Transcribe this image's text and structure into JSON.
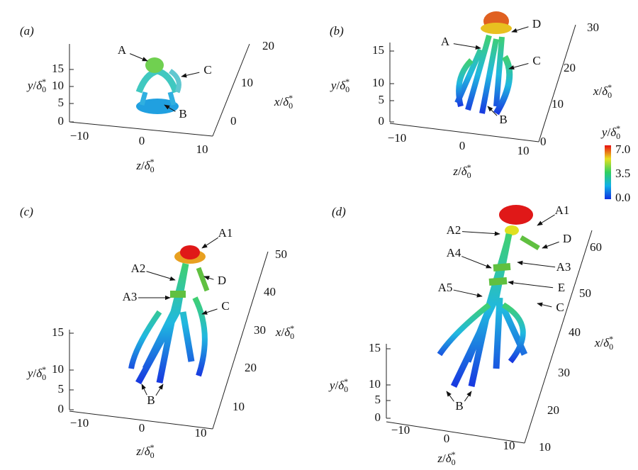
{
  "panels": [
    {
      "label": "(a)",
      "y_ticks": [
        "0",
        "5",
        "10",
        "15"
      ],
      "z_ticks": [
        "−10",
        "0",
        "10"
      ],
      "x_ticks": [
        "0",
        "10",
        "20"
      ],
      "y_label": {
        "var": "y",
        "sep": "/",
        "sym": "δ",
        "sub": "0",
        "sup": "*"
      },
      "z_label": {
        "var": "z",
        "sep": "/",
        "sym": "δ",
        "sub": "0",
        "sup": "*"
      },
      "x_label": {
        "var": "x",
        "sep": "/",
        "sym": "δ",
        "sub": "0",
        "sup": "*"
      },
      "annotations": [
        "A",
        "C",
        "B"
      ]
    },
    {
      "label": "(b)",
      "y_ticks": [
        "0",
        "5",
        "10",
        "15"
      ],
      "z_ticks": [
        "−10",
        "0",
        "10"
      ],
      "x_ticks": [
        "0",
        "10",
        "20",
        "30"
      ],
      "y_label": {
        "var": "y",
        "sep": "/",
        "sym": "δ",
        "sub": "0",
        "sup": "*"
      },
      "z_label": {
        "var": "z",
        "sep": "/",
        "sym": "δ",
        "sub": "0",
        "sup": "*"
      },
      "x_label": {
        "var": "x",
        "sep": "/",
        "sym": "δ",
        "sub": "0",
        "sup": "*"
      },
      "annotations": [
        "D",
        "A",
        "C",
        "B"
      ]
    },
    {
      "label": "(c)",
      "y_ticks": [
        "0",
        "5",
        "10",
        "15"
      ],
      "z_ticks": [
        "−10",
        "0",
        "10"
      ],
      "x_ticks": [
        "10",
        "20",
        "30",
        "40",
        "50"
      ],
      "y_label": {
        "var": "y",
        "sep": "/",
        "sym": "δ",
        "sub": "0",
        "sup": "*"
      },
      "z_label": {
        "var": "z",
        "sep": "/",
        "sym": "δ",
        "sub": "0",
        "sup": "*"
      },
      "x_label": {
        "var": "x",
        "sep": "/",
        "sym": "δ",
        "sub": "0",
        "sup": "*"
      },
      "annotations": [
        "A1",
        "A2",
        "D",
        "A3",
        "C",
        "B"
      ]
    },
    {
      "label": "(d)",
      "y_ticks": [
        "0",
        "5",
        "10",
        "15"
      ],
      "z_ticks": [
        "−10",
        "0",
        "10"
      ],
      "x_ticks": [
        "10",
        "20",
        "30",
        "40",
        "50",
        "60"
      ],
      "y_label": {
        "var": "y",
        "sep": "/",
        "sym": "δ",
        "sub": "0",
        "sup": "*"
      },
      "z_label": {
        "var": "z",
        "sep": "/",
        "sym": "δ",
        "sub": "0",
        "sup": "*"
      },
      "x_label": {
        "var": "x",
        "sep": "/",
        "sym": "δ",
        "sub": "0",
        "sup": "*"
      },
      "annotations": [
        "A1",
        "A2",
        "D",
        "A4",
        "A3",
        "A5",
        "E",
        "C",
        "B"
      ]
    }
  ],
  "colorbar": {
    "title": {
      "var": "y",
      "sep": "/",
      "sym": "δ",
      "sub": "0",
      "sup": "*"
    },
    "ticks": [
      "7.0",
      "3.5",
      "0.0"
    ]
  }
}
